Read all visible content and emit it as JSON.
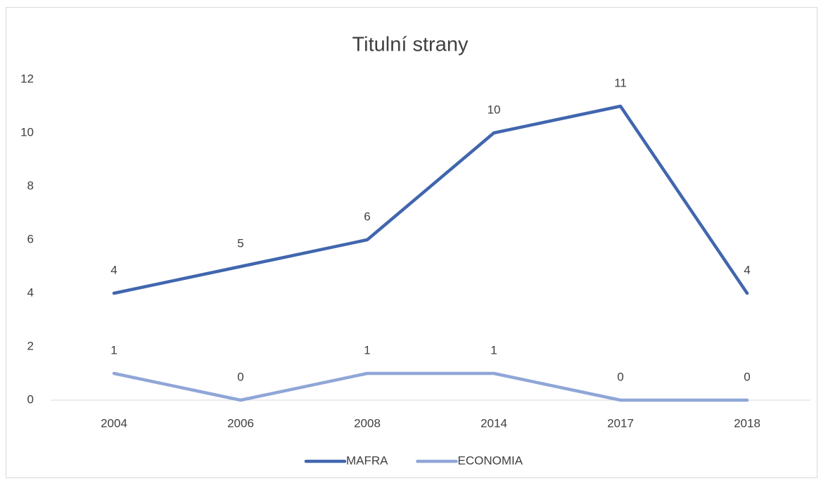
{
  "chart_data": {
    "type": "line",
    "title": "Titulní strany",
    "categories": [
      "2004",
      "2006",
      "2008",
      "2014",
      "2017",
      "2018"
    ],
    "series": [
      {
        "name": "MAFRA",
        "color": "#4166ae",
        "values": [
          4,
          5,
          6,
          10,
          11,
          4
        ]
      },
      {
        "name": "ECONOMIA",
        "color": "#8fa6d7",
        "values": [
          1,
          0,
          1,
          1,
          0,
          0
        ]
      }
    ],
    "ylim": [
      0,
      12
    ],
    "yticks": [
      0,
      2,
      4,
      6,
      8,
      10,
      12
    ],
    "grid": false,
    "legend": "bottom",
    "data_labels": true
  }
}
